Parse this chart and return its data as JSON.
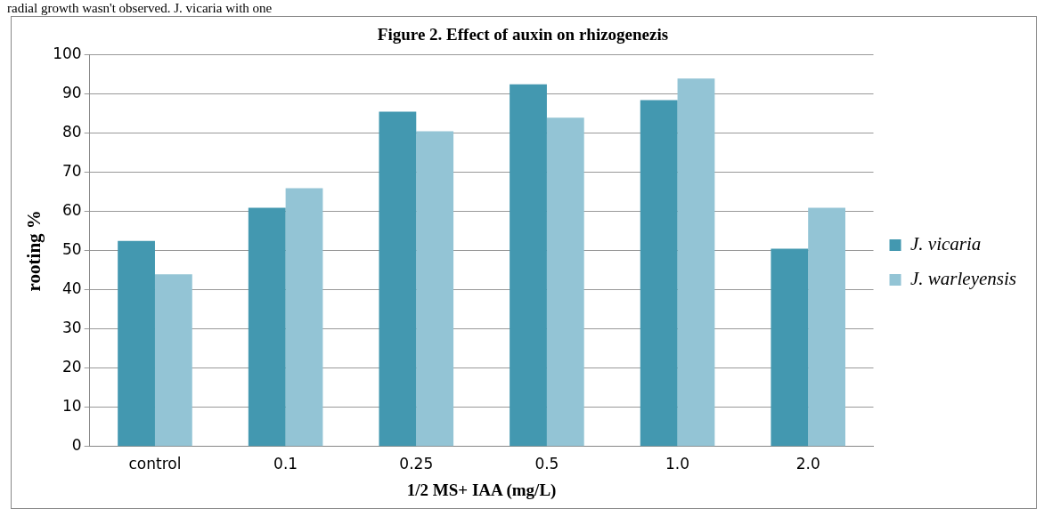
{
  "chart_data": {
    "type": "bar",
    "title": "Figure 2. Effect of auxin on rhizogenezis",
    "xlabel": "1/2 MS+ IAA (mg/L)",
    "ylabel": "rooting %",
    "annotations": [
      "radial growth wasn't observed. J. vicaria with one"
    ],
    "categories": [
      "control",
      "0.1",
      "0.25",
      "0.5",
      "1.0",
      "2.0"
    ],
    "series": [
      {
        "name": "J. vicaria",
        "color": "#4398b0",
        "values": [
          52.5,
          61,
          85.5,
          92.5,
          88.5,
          50.5
        ]
      },
      {
        "name": "J. warleyensis",
        "color": "#93c4d5",
        "values": [
          44,
          66,
          80.5,
          84,
          94,
          61
        ]
      }
    ],
    "ylim": [
      0,
      100
    ],
    "yticks": [
      0,
      10,
      20,
      30,
      40,
      50,
      60,
      70,
      80,
      90,
      100
    ],
    "grid": "y",
    "legend": "right"
  }
}
